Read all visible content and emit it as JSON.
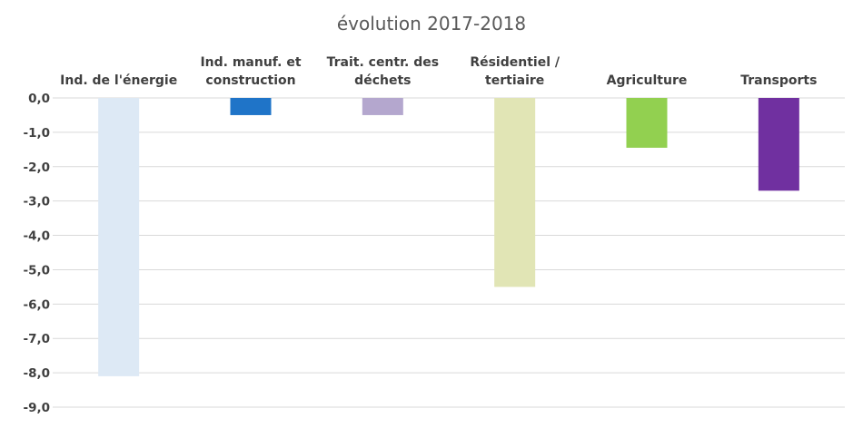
{
  "chart_data": {
    "type": "bar",
    "title": "évolution 2017-2018",
    "xlabel": "",
    "ylabel": "",
    "categories": [
      [
        "Ind. de l'énergie"
      ],
      [
        "Ind. manuf. et",
        "construction"
      ],
      [
        "Trait. centr. des",
        "déchets"
      ],
      [
        "Résidentiel /",
        "tertiaire"
      ],
      [
        "Agriculture"
      ],
      [
        "Transports"
      ]
    ],
    "values": [
      -8.1,
      -0.5,
      -0.5,
      -5.5,
      -1.45,
      -2.7
    ],
    "colors": [
      "#dde9f5",
      "#1f74c8",
      "#b4a7ce",
      "#e1e5b5",
      "#92d050",
      "#7030a0"
    ],
    "ylim": [
      -9.0,
      0.0
    ],
    "yticks": [
      "0,0",
      "-1,0",
      "-2,0",
      "-3,0",
      "-4,0",
      "-5,0",
      "-6,0",
      "-7,0",
      "-8,0",
      "-9,0"
    ],
    "grid": true,
    "legend": "none",
    "gridline_color": "#d9d9d9"
  }
}
